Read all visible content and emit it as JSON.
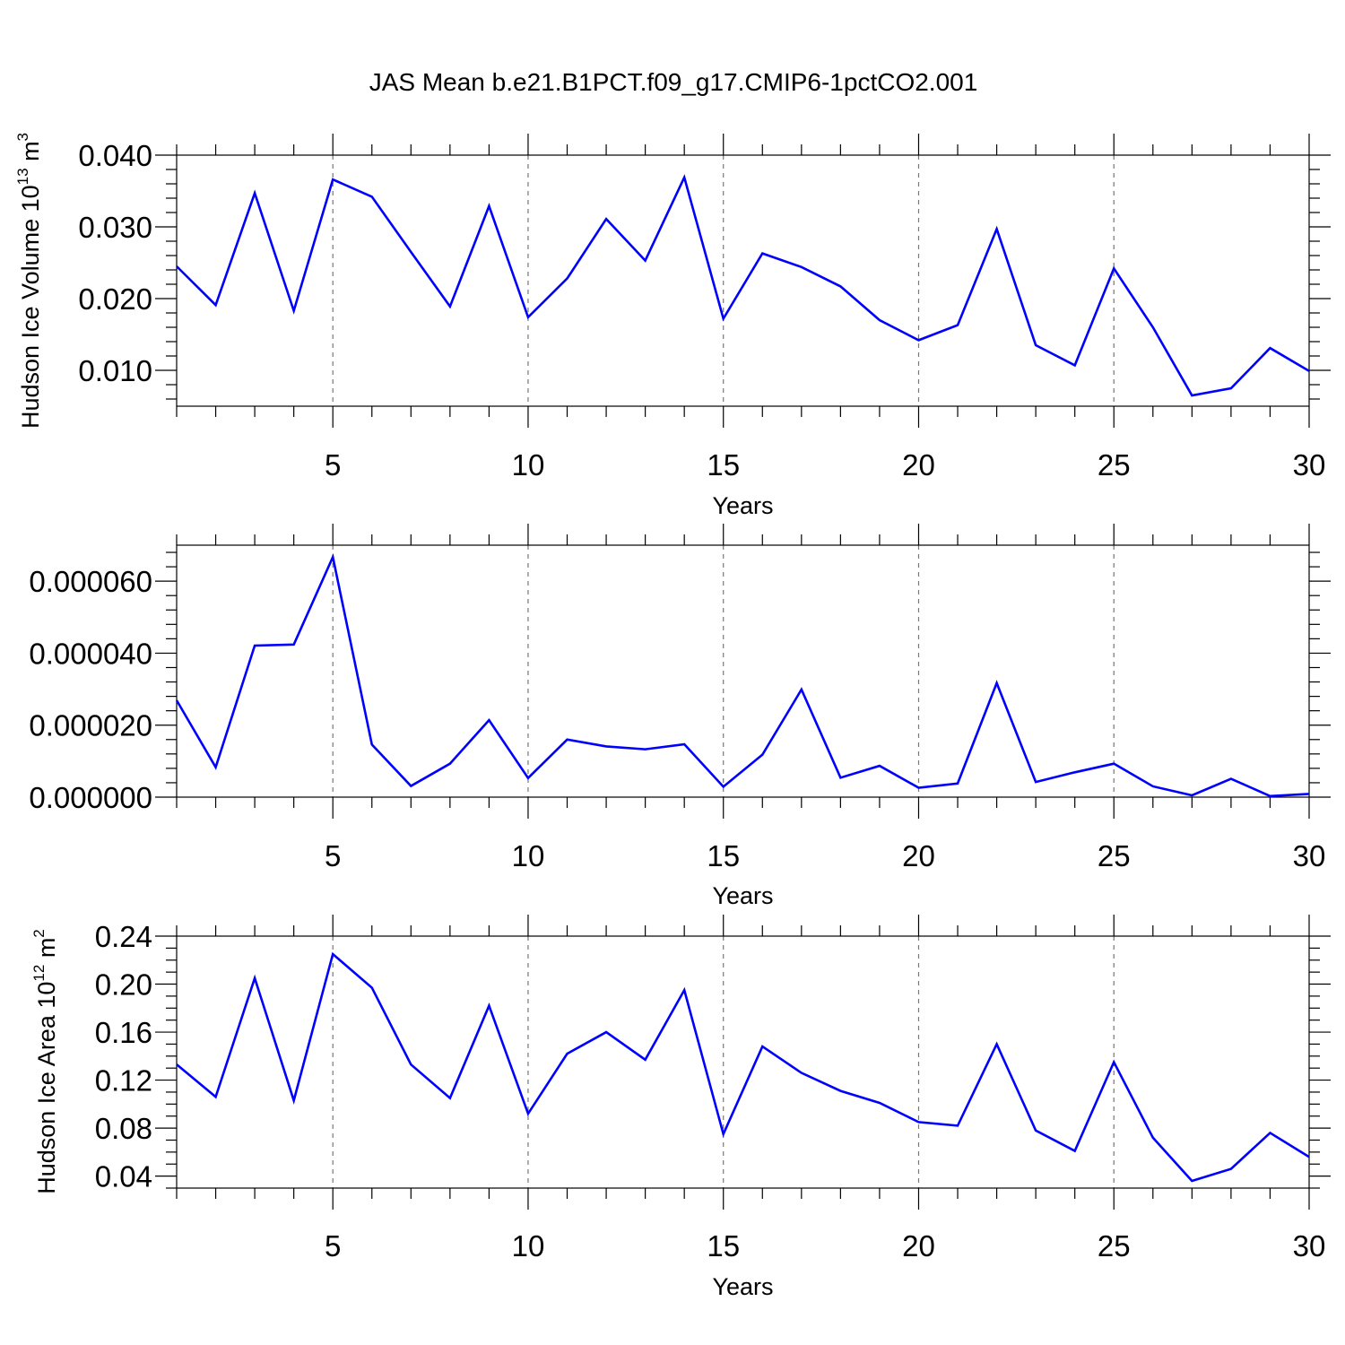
{
  "figure": {
    "title": "JAS Mean b.e21.B1PCT.f09_g17.CMIP6-1pctCO2.001"
  },
  "colors": {
    "line": "#0000ff",
    "grid": "#777777",
    "axis": "#000000"
  },
  "chart_data": [
    {
      "type": "line",
      "title": "",
      "xlabel": "Years",
      "ylabel": {
        "text": "Hudson Ice Volume 10",
        "sup": "13",
        "unit": " m",
        "unit_sup": "3"
      },
      "xlim": [
        1,
        30
      ],
      "ylim": [
        0.005,
        0.04
      ],
      "x_ticks": [
        5,
        10,
        15,
        20,
        25,
        30
      ],
      "x_tick_labels": [
        "5",
        "10",
        "15",
        "20",
        "25",
        "30"
      ],
      "y_ticks": [
        0.01,
        0.02,
        0.03,
        0.04
      ],
      "y_tick_labels": [
        "0.010",
        "0.020",
        "0.030",
        "0.040"
      ],
      "y_minor_step": 0.002,
      "grid": "vertical dashed at major x ticks",
      "series": [
        {
          "x": [
            1,
            2,
            3,
            4,
            5,
            6,
            7,
            8,
            9,
            10,
            11,
            12,
            13,
            14,
            15,
            16,
            17,
            18,
            19,
            20,
            21,
            22,
            23,
            24,
            25,
            26,
            27,
            28,
            29,
            30
          ],
          "values": [
            0.0245,
            0.0191,
            0.0347,
            0.0183,
            0.0366,
            0.0342,
            0.0265,
            0.0189,
            0.0329,
            0.0174,
            0.0228,
            0.0311,
            0.0253,
            0.0369,
            0.0172,
            0.0263,
            0.0244,
            0.0217,
            0.017,
            0.0142,
            0.0163,
            0.0297,
            0.0135,
            0.0107,
            0.0242,
            0.016,
            0.0065,
            0.0075,
            0.0131,
            0.0099
          ]
        }
      ]
    },
    {
      "type": "line",
      "title": "",
      "xlabel": "Years",
      "ylabel": null,
      "xlim": [
        1,
        30
      ],
      "ylim": [
        0.0,
        7e-05
      ],
      "x_ticks": [
        5,
        10,
        15,
        20,
        25,
        30
      ],
      "x_tick_labels": [
        "5",
        "10",
        "15",
        "20",
        "25",
        "30"
      ],
      "y_ticks": [
        0.0,
        2e-05,
        4e-05,
        6e-05
      ],
      "y_tick_labels": [
        "0.000000",
        "0.000020",
        "0.000040",
        "0.000060"
      ],
      "y_minor_step": 4e-06,
      "grid": "vertical dashed at major x ticks",
      "series": [
        {
          "x": [
            1,
            2,
            3,
            4,
            5,
            6,
            7,
            8,
            9,
            10,
            11,
            12,
            13,
            14,
            15,
            16,
            17,
            18,
            19,
            20,
            21,
            22,
            23,
            24,
            25,
            26,
            27,
            28,
            29,
            30
          ],
          "values": [
            2.69e-05,
            8.3e-06,
            4.21e-05,
            4.24e-05,
            6.67e-05,
            1.46e-05,
            3.1e-06,
            9.3e-06,
            2.14e-05,
            5.3e-06,
            1.6e-05,
            1.41e-05,
            1.33e-05,
            1.47e-05,
            2.9e-06,
            1.18e-05,
            2.99e-05,
            5.4e-06,
            8.7e-06,
            2.6e-06,
            3.8e-06,
            3.17e-05,
            4.2e-06,
            6.9e-06,
            9.3e-06,
            3e-06,
            5e-07,
            5.1e-06,
            3e-07,
            9e-07
          ]
        }
      ]
    },
    {
      "type": "line",
      "title": "",
      "xlabel": "Years",
      "ylabel": {
        "text": "Hudson Ice Area 10",
        "sup": "12",
        "unit": " m",
        "unit_sup": "2"
      },
      "xlim": [
        1,
        30
      ],
      "ylim": [
        0.03,
        0.24
      ],
      "x_ticks": [
        5,
        10,
        15,
        20,
        25,
        30
      ],
      "x_tick_labels": [
        "5",
        "10",
        "15",
        "20",
        "25",
        "30"
      ],
      "y_ticks": [
        0.04,
        0.08,
        0.12,
        0.16,
        0.2,
        0.24
      ],
      "y_tick_labels": [
        "0.04",
        "0.08",
        "0.12",
        "0.16",
        "0.20",
        "0.24"
      ],
      "y_minor_step": 0.01,
      "grid": "vertical dashed at major x ticks",
      "series": [
        {
          "x": [
            1,
            2,
            3,
            4,
            5,
            6,
            7,
            8,
            9,
            10,
            11,
            12,
            13,
            14,
            15,
            16,
            17,
            18,
            19,
            20,
            21,
            22,
            23,
            24,
            25,
            26,
            27,
            28,
            29,
            30
          ],
          "values": [
            0.133,
            0.106,
            0.205,
            0.103,
            0.225,
            0.197,
            0.133,
            0.105,
            0.182,
            0.092,
            0.142,
            0.16,
            0.137,
            0.195,
            0.075,
            0.148,
            0.126,
            0.111,
            0.101,
            0.085,
            0.082,
            0.15,
            0.078,
            0.061,
            0.135,
            0.072,
            0.036,
            0.046,
            0.076,
            0.056
          ]
        }
      ]
    }
  ]
}
